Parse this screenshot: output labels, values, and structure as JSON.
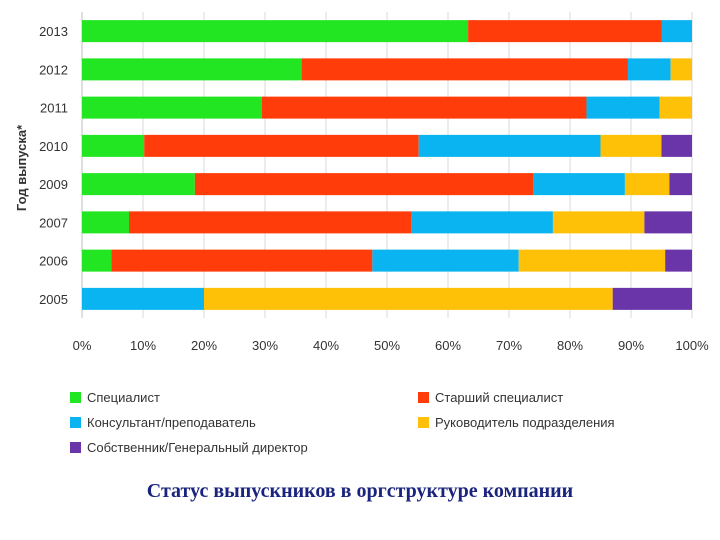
{
  "chart_data": {
    "type": "bar",
    "orientation": "horizontal",
    "stacked": true,
    "normalized": true,
    "title": "Статус выпускников в оргструктуре компании",
    "ylabel": "Год выпуска*",
    "xlabel": "",
    "xlim": [
      0,
      100
    ],
    "x_ticks": [
      "0%",
      "10%",
      "20%",
      "30%",
      "40%",
      "50%",
      "60%",
      "70%",
      "80%",
      "90%",
      "100%"
    ],
    "categories": [
      "2013",
      "2012",
      "2011",
      "2010",
      "2009",
      "2007",
      "2006",
      "2005"
    ],
    "grid": true,
    "legend_position": "bottom",
    "series": [
      {
        "name": "Специалист",
        "color": "#22e622",
        "values": [
          63.3,
          36,
          29.5,
          10.2,
          18.5,
          7.7,
          4.8,
          0
        ]
      },
      {
        "name": "Старший специалист",
        "color": "#ff3c0a",
        "values": [
          31.7,
          53.5,
          53.2,
          45,
          55.5,
          46.3,
          42.8,
          0
        ]
      },
      {
        "name": "Консультант/преподаватель",
        "color": "#0ab4f0",
        "values": [
          5,
          7,
          12,
          29.8,
          15,
          23.2,
          24,
          20
        ]
      },
      {
        "name": "Руководитель подразделения",
        "color": "#ffc107",
        "values": [
          0,
          3.5,
          5.3,
          10,
          7.3,
          15,
          24,
          67
        ]
      },
      {
        "name": "Собственник/Генеральный директор",
        "color": "#6a35a8",
        "values": [
          0,
          0,
          0,
          5,
          3.7,
          7.8,
          4.4,
          13
        ]
      }
    ]
  }
}
